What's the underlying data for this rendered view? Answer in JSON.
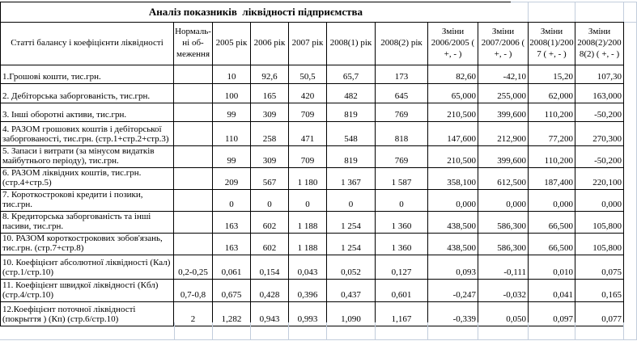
{
  "chart_data": {
    "type": "table",
    "title": "Аналіз показників  ліквідності підприємства",
    "columns": [
      "Статті балансу і коефіцієнти ліквідності",
      "Нормаль-\nні об-\nмеження",
      "2005 рік",
      "2006 рік",
      "2007 рік",
      "2008(1) рік",
      "2008(2) рік",
      "Зміни\n2006/2005 (\n+, - )",
      "Зміни\n2007/2006 (\n+, - )",
      "Зміни\n2008(1)/200\n7 ( +, - )",
      "Зміни\n2008(2)/200\n8(2) ( +, - )"
    ],
    "rows": [
      {
        "label": "1.Грошові кошти, тис.грн.",
        "norm": "",
        "values": [
          "10",
          "92,6",
          "50,5",
          "65,7",
          "173"
        ],
        "changes": [
          "82,60",
          "-42,10",
          "15,20",
          "107,30"
        ]
      },
      {
        "label": "2. Дебіторська заборгованість, тис.грн.",
        "norm": "",
        "values": [
          "100",
          "165",
          "420",
          "482",
          "645"
        ],
        "changes": [
          "65,000",
          "255,000",
          "62,000",
          "163,000"
        ]
      },
      {
        "label": "3. Інші оборотні активи, тис.грн.",
        "norm": "",
        "values": [
          "99",
          "309",
          "709",
          "819",
          "769"
        ],
        "changes": [
          "210,500",
          "399,600",
          "110,200",
          "-50,200"
        ]
      },
      {
        "label": "4. РАЗОМ грошових коштів і дебіторської заборгованості, тис.грн. (стр.1+стр.2+стр.3)",
        "norm": "",
        "values": [
          "110",
          "258",
          "471",
          "548",
          "818"
        ],
        "changes": [
          "147,600",
          "212,900",
          "77,200",
          "270,300"
        ]
      },
      {
        "label": "5. Запаси і витрати (за мінусом видатків майбутнього періоду), тис.грн.",
        "norm": "",
        "values": [
          "99",
          "309",
          "709",
          "819",
          "769"
        ],
        "changes": [
          "210,500",
          "399,600",
          "110,200",
          "-50,200"
        ]
      },
      {
        "label": "6. РАЗОМ ліквідних коштів, тис.грн. (стр.4+стр.5)",
        "norm": "",
        "values": [
          "209",
          "567",
          "1 180",
          "1 367",
          "1 587"
        ],
        "changes": [
          "358,100",
          "612,500",
          "187,400",
          "220,100"
        ]
      },
      {
        "label": "7. Короткострокові кредити і позики, тис.грн.",
        "norm": "",
        "values": [
          "0",
          "0",
          "0",
          "0",
          "0"
        ],
        "changes": [
          "0,000",
          "0,000",
          "0,000",
          "0,000"
        ]
      },
      {
        "label": "8. Кредиторська заборгованість та інші пасиви, тис.грн.",
        "norm": "",
        "values": [
          "163",
          "602",
          "1 188",
          "1 254",
          "1 360"
        ],
        "changes": [
          "438,500",
          "586,300",
          "66,500",
          "105,800"
        ]
      },
      {
        "label": "10. РАЗОМ короткострокових зобов'язань, тис.грн. (стр.7+стр.8)",
        "norm": "",
        "values": [
          "163",
          "602",
          "1 188",
          "1 254",
          "1 360"
        ],
        "changes": [
          "438,500",
          "586,300",
          "66,500",
          "105,800"
        ]
      },
      {
        "label": "10. Коефіцієнт абсолютної ліквідності (Кал) (стр.1/стр.10)",
        "norm": "0,2-0,25",
        "values": [
          "0,061",
          "0,154",
          "0,043",
          "0,052",
          "0,127"
        ],
        "changes": [
          "0,093",
          "-0,111",
          "0,010",
          "0,075"
        ]
      },
      {
        "label": "11. Коефіцієнт швидкої ліквідності (Кбл) (стр.4/стр.10)",
        "norm": "0,7-0,8",
        "values": [
          "0,675",
          "0,428",
          "0,396",
          "0,437",
          "0,601"
        ],
        "changes": [
          "-0,247",
          "-0,032",
          "0,041",
          "0,165"
        ]
      },
      {
        "label": "12.Коефіцієнт поточної ліквідності (покрыття ) (Кп) (стр.6/стр.10)",
        "norm": "2",
        "values": [
          "1,282",
          "0,943",
          "0,993",
          "1,090",
          "1,167"
        ],
        "changes": [
          "-0,339",
          "0,050",
          "0,097",
          "0,077"
        ]
      }
    ]
  },
  "colors": {
    "table_border": "#000000",
    "gridline": "#c2cddc",
    "text": "#000000",
    "background": "#ffffff"
  }
}
